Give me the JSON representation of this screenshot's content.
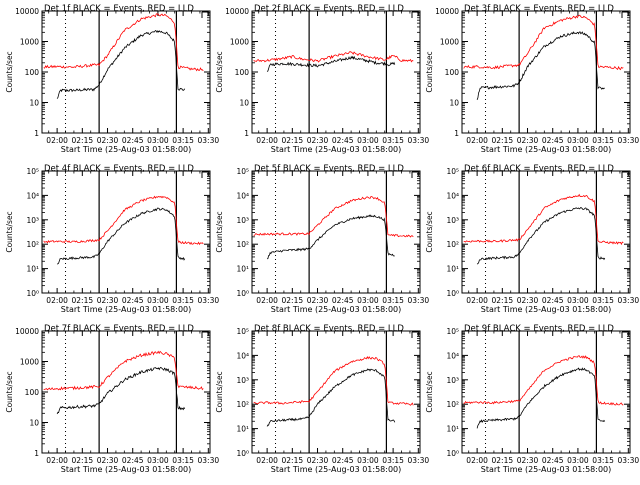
{
  "colors": {
    "events": "#000000",
    "lld": "#ff0000",
    "axes": "#000000",
    "background": "#ffffff"
  },
  "chart_data": [
    {
      "type": "line",
      "title": "Det 1f BLACK = Events, RED = LLD",
      "ylabel": "Counts/sec",
      "xlabel": "Start Time (25-Aug-03 01:58:00)",
      "x_ticks": [
        "02:00",
        "02:15",
        "02:30",
        "02:45",
        "03:00",
        "03:15",
        "03:30"
      ],
      "y_scale": "log",
      "ylim": [
        1,
        10000
      ],
      "y_ticks": [
        "1",
        "10",
        "100",
        "1000",
        "10000"
      ],
      "xlim": [
        "01:51",
        "03:31"
      ],
      "markers": [
        {
          "time": "02:05",
          "style": "dotted"
        },
        {
          "time": "02:25",
          "style": "solid"
        },
        {
          "time": "03:11",
          "style": "solid"
        }
      ],
      "series": [
        {
          "name": "Events",
          "color": "#000000",
          "x": [
            "02:00",
            "02:02",
            "02:10",
            "02:22",
            "02:25",
            "02:30",
            "02:40",
            "02:50",
            "03:00",
            "03:05",
            "03:10",
            "03:12",
            "03:16"
          ],
          "y": [
            13,
            25,
            25,
            27,
            38,
            120,
            600,
            1600,
            2200,
            1900,
            1000,
            28,
            26
          ]
        },
        {
          "name": "LLD",
          "color": "#ff0000",
          "x": [
            "01:52",
            "02:00",
            "02:10",
            "02:20",
            "02:25",
            "02:30",
            "02:40",
            "02:50",
            "03:00",
            "03:05",
            "03:10",
            "03:12",
            "03:20",
            "03:27"
          ],
          "y": [
            145,
            150,
            145,
            165,
            170,
            350,
            2300,
            5500,
            7500,
            7000,
            4200,
            145,
            125,
            120
          ]
        }
      ]
    },
    {
      "type": "line",
      "title": "Det 2f BLACK = Events, RED = LLD",
      "ylabel": "Counts/sec",
      "xlabel": "Start Time (25-Aug-03 01:58:00)",
      "x_ticks": [
        "02:00",
        "02:15",
        "02:30",
        "02:45",
        "03:00",
        "03:15",
        "03:30"
      ],
      "y_scale": "log",
      "ylim": [
        1,
        10000
      ],
      "y_ticks": [
        "1",
        "10",
        "100",
        "1000",
        "10000"
      ],
      "xlim": [
        "01:51",
        "03:31"
      ],
      "markers": [
        {
          "time": "02:05",
          "style": "dotted"
        },
        {
          "time": "02:25",
          "style": "solid"
        },
        {
          "time": "03:11",
          "style": "solid"
        }
      ],
      "series": [
        {
          "name": "Events",
          "color": "#000000",
          "x": [
            "02:00",
            "02:02",
            "02:10",
            "02:20",
            "02:30",
            "02:40",
            "02:50",
            "03:00",
            "03:05",
            "03:10",
            "03:12",
            "03:16"
          ],
          "y": [
            95,
            175,
            190,
            175,
            160,
            220,
            300,
            230,
            200,
            190,
            175,
            190
          ]
        },
        {
          "name": "LLD",
          "color": "#ff0000",
          "x": [
            "01:52",
            "02:00",
            "02:10",
            "02:15",
            "02:20",
            "02:30",
            "02:40",
            "02:50",
            "03:00",
            "03:10",
            "03:15",
            "03:20",
            "03:27"
          ],
          "y": [
            230,
            240,
            280,
            320,
            270,
            230,
            330,
            430,
            320,
            250,
            340,
            240,
            230
          ]
        }
      ]
    },
    {
      "type": "line",
      "title": "Det 3f BLACK = Events, RED = LLD",
      "ylabel": "Counts/sec",
      "xlabel": "Start Time (25-Aug-03 01:58:00)",
      "x_ticks": [
        "02:00",
        "02:15",
        "02:30",
        "02:45",
        "03:00",
        "03:15",
        "03:30"
      ],
      "y_scale": "log",
      "ylim": [
        1,
        10000
      ],
      "y_ticks": [
        "1",
        "10",
        "100",
        "1000",
        "10000"
      ],
      "xlim": [
        "01:51",
        "03:31"
      ],
      "markers": [
        {
          "time": "02:05",
          "style": "dotted"
        },
        {
          "time": "02:25",
          "style": "solid"
        },
        {
          "time": "03:11",
          "style": "solid"
        }
      ],
      "series": [
        {
          "name": "Events",
          "color": "#000000",
          "x": [
            "02:00",
            "02:02",
            "02:10",
            "02:22",
            "02:25",
            "02:30",
            "02:40",
            "02:50",
            "03:00",
            "03:05",
            "03:10",
            "03:12",
            "03:16"
          ],
          "y": [
            13,
            30,
            32,
            35,
            45,
            150,
            700,
            1500,
            2000,
            1700,
            900,
            30,
            28
          ]
        },
        {
          "name": "LLD",
          "color": "#ff0000",
          "x": [
            "01:52",
            "02:00",
            "02:10",
            "02:20",
            "02:25",
            "02:30",
            "02:40",
            "02:50",
            "03:00",
            "03:05",
            "03:10",
            "03:12",
            "03:20",
            "03:27"
          ],
          "y": [
            145,
            150,
            140,
            160,
            170,
            400,
            2800,
            5000,
            6800,
            6000,
            3500,
            150,
            140,
            130
          ]
        }
      ]
    },
    {
      "type": "line",
      "title": "Det 4f BLACK = Events, RED = LLD",
      "ylabel": "Counts/sec",
      "xlabel": "Start Time (25-Aug-03 01:58:00)",
      "x_ticks": [
        "02:00",
        "02:15",
        "02:30",
        "02:45",
        "03:00",
        "03:15",
        "03:30"
      ],
      "y_scale": "log",
      "ylim": [
        1,
        100000
      ],
      "y_ticks": [
        "10⁰",
        "10¹",
        "10²",
        "10³",
        "10⁴",
        "10⁵"
      ],
      "xlim": [
        "01:51",
        "03:31"
      ],
      "markers": [
        {
          "time": "02:05",
          "style": "dotted"
        },
        {
          "time": "02:25",
          "style": "solid"
        },
        {
          "time": "03:11",
          "style": "solid"
        }
      ],
      "series": [
        {
          "name": "Events",
          "color": "#000000",
          "x": [
            "02:00",
            "02:02",
            "02:10",
            "02:22",
            "02:25",
            "02:30",
            "02:40",
            "02:50",
            "03:00",
            "03:05",
            "03:10",
            "03:12",
            "03:16"
          ],
          "y": [
            14,
            25,
            27,
            30,
            40,
            130,
            700,
            1800,
            2800,
            2600,
            1400,
            28,
            25
          ]
        },
        {
          "name": "LLD",
          "color": "#ff0000",
          "x": [
            "01:52",
            "02:00",
            "02:10",
            "02:20",
            "02:25",
            "02:30",
            "02:40",
            "02:50",
            "03:00",
            "03:05",
            "03:10",
            "03:12",
            "03:20",
            "03:27"
          ],
          "y": [
            125,
            130,
            125,
            140,
            150,
            350,
            2500,
            6000,
            9000,
            8500,
            5000,
            120,
            110,
            105
          ]
        }
      ]
    },
    {
      "type": "line",
      "title": "Det 5f BLACK = Events, RED = LLD",
      "ylabel": "Counts/sec",
      "xlabel": "Start Time (25-Aug-03 01:58:00)",
      "x_ticks": [
        "02:00",
        "02:15",
        "02:30",
        "02:45",
        "03:00",
        "03:15",
        "03:30"
      ],
      "y_scale": "log",
      "ylim": [
        1,
        100000
      ],
      "y_ticks": [
        "10⁰",
        "10¹",
        "10²",
        "10³",
        "10⁴",
        "10⁵"
      ],
      "xlim": [
        "01:51",
        "03:31"
      ],
      "markers": [
        {
          "time": "02:05",
          "style": "dotted"
        },
        {
          "time": "02:25",
          "style": "solid"
        },
        {
          "time": "03:11",
          "style": "solid"
        }
      ],
      "series": [
        {
          "name": "Events",
          "color": "#000000",
          "x": [
            "02:00",
            "02:02",
            "02:10",
            "02:20",
            "02:25",
            "02:30",
            "02:40",
            "02:50",
            "03:00",
            "03:05",
            "03:10",
            "03:12",
            "03:16"
          ],
          "y": [
            25,
            45,
            55,
            60,
            65,
            150,
            600,
            1100,
            1400,
            1400,
            1000,
            40,
            35
          ]
        },
        {
          "name": "LLD",
          "color": "#ff0000",
          "x": [
            "01:52",
            "02:00",
            "02:10",
            "02:20",
            "02:25",
            "02:30",
            "02:40",
            "02:50",
            "03:00",
            "03:05",
            "03:10",
            "03:12",
            "03:20",
            "03:27"
          ],
          "y": [
            250,
            260,
            265,
            260,
            270,
            600,
            2800,
            6000,
            8500,
            8000,
            5000,
            230,
            220,
            210
          ]
        }
      ]
    },
    {
      "type": "line",
      "title": "Det 6f BLACK = Events, RED = LLD",
      "ylabel": "Counts/sec",
      "xlabel": "Start Time (25-Aug-03 01:58:00)",
      "x_ticks": [
        "02:00",
        "02:15",
        "02:30",
        "02:45",
        "03:00",
        "03:15",
        "03:30"
      ],
      "y_scale": "log",
      "ylim": [
        1,
        100000
      ],
      "y_ticks": [
        "10⁰",
        "10¹",
        "10²",
        "10³",
        "10⁴",
        "10⁵"
      ],
      "xlim": [
        "01:51",
        "03:31"
      ],
      "markers": [
        {
          "time": "02:05",
          "style": "dotted"
        },
        {
          "time": "02:25",
          "style": "solid"
        },
        {
          "time": "03:11",
          "style": "solid"
        }
      ],
      "series": [
        {
          "name": "Events",
          "color": "#000000",
          "x": [
            "02:00",
            "02:02",
            "02:10",
            "02:22",
            "02:25",
            "02:30",
            "02:40",
            "02:50",
            "03:00",
            "03:05",
            "03:10",
            "03:12",
            "03:16"
          ],
          "y": [
            14,
            25,
            27,
            30,
            40,
            140,
            800,
            2000,
            3000,
            2800,
            1500,
            28,
            26
          ]
        },
        {
          "name": "LLD",
          "color": "#ff0000",
          "x": [
            "01:52",
            "02:00",
            "02:10",
            "02:20",
            "02:25",
            "02:30",
            "02:40",
            "02:50",
            "03:00",
            "03:05",
            "03:10",
            "03:12",
            "03:20",
            "03:27"
          ],
          "y": [
            130,
            135,
            130,
            145,
            150,
            400,
            3000,
            7000,
            10000,
            9500,
            5500,
            125,
            115,
            110
          ]
        }
      ]
    },
    {
      "type": "line",
      "title": "Det 7f BLACK = Events, RED = LLD",
      "ylabel": "Counts/sec",
      "xlabel": "Start Time (25-Aug-03 01:58:00)",
      "x_ticks": [
        "02:00",
        "02:15",
        "02:30",
        "02:45",
        "03:00",
        "03:15",
        "03:30"
      ],
      "y_scale": "log",
      "ylim": [
        1,
        10000
      ],
      "y_ticks": [
        "1",
        "10",
        "100",
        "1000",
        "10000"
      ],
      "xlim": [
        "01:51",
        "03:31"
      ],
      "markers": [
        {
          "time": "02:05",
          "style": "dotted"
        },
        {
          "time": "02:25",
          "style": "solid"
        },
        {
          "time": "03:11",
          "style": "solid"
        }
      ],
      "series": [
        {
          "name": "Events",
          "color": "#000000",
          "x": [
            "02:00",
            "02:02",
            "02:10",
            "02:22",
            "02:25",
            "02:30",
            "02:40",
            "02:50",
            "03:00",
            "03:05",
            "03:10",
            "03:12",
            "03:16"
          ],
          "y": [
            18,
            30,
            32,
            35,
            40,
            90,
            250,
            450,
            600,
            550,
            400,
            30,
            28
          ]
        },
        {
          "name": "LLD",
          "color": "#ff0000",
          "x": [
            "01:52",
            "02:00",
            "02:10",
            "02:20",
            "02:25",
            "02:30",
            "02:40",
            "02:50",
            "03:00",
            "03:05",
            "03:10",
            "03:12",
            "03:20",
            "03:27"
          ],
          "y": [
            120,
            130,
            135,
            145,
            150,
            300,
            1000,
            1600,
            2000,
            1800,
            1300,
            150,
            140,
            130
          ]
        }
      ]
    },
    {
      "type": "line",
      "title": "Det 8f BLACK = Events, RED = LLD",
      "ylabel": "Counts/sec",
      "xlabel": "Start Time (25-Aug-03 01:58:00)",
      "x_ticks": [
        "02:00",
        "02:15",
        "02:30",
        "02:45",
        "03:00",
        "03:15",
        "03:30"
      ],
      "y_scale": "log",
      "ylim": [
        1,
        100000
      ],
      "y_ticks": [
        "10⁰",
        "10¹",
        "10²",
        "10³",
        "10⁴",
        "10⁵"
      ],
      "xlim": [
        "01:51",
        "03:31"
      ],
      "markers": [
        {
          "time": "02:05",
          "style": "dotted"
        },
        {
          "time": "02:25",
          "style": "solid"
        },
        {
          "time": "03:11",
          "style": "solid"
        }
      ],
      "series": [
        {
          "name": "Events",
          "color": "#000000",
          "x": [
            "02:00",
            "02:02",
            "02:10",
            "02:22",
            "02:25",
            "02:30",
            "02:40",
            "02:50",
            "03:00",
            "03:05",
            "03:10",
            "03:12",
            "03:16"
          ],
          "y": [
            12,
            20,
            22,
            25,
            30,
            100,
            500,
            1500,
            2600,
            2400,
            1300,
            22,
            20
          ]
        },
        {
          "name": "LLD",
          "color": "#ff0000",
          "x": [
            "01:52",
            "02:00",
            "02:10",
            "02:20",
            "02:25",
            "02:30",
            "02:40",
            "02:50",
            "03:00",
            "03:05",
            "03:10",
            "03:12",
            "03:20",
            "03:27"
          ],
          "y": [
            110,
            115,
            110,
            125,
            130,
            320,
            2200,
            5500,
            8000,
            7500,
            4500,
            115,
            105,
            100
          ]
        }
      ]
    },
    {
      "type": "line",
      "title": "Det 9f BLACK = Events, RED = LLD",
      "ylabel": "Counts/sec",
      "xlabel": "Start Time (25-Aug-03 01:58:00)",
      "x_ticks": [
        "02:00",
        "02:15",
        "02:30",
        "02:45",
        "03:00",
        "03:15",
        "03:30"
      ],
      "y_scale": "log",
      "ylim": [
        1,
        100000
      ],
      "y_ticks": [
        "10⁰",
        "10¹",
        "10²",
        "10³",
        "10⁴",
        "10⁵"
      ],
      "xlim": [
        "01:51",
        "03:31"
      ],
      "markers": [
        {
          "time": "02:05",
          "style": "dotted"
        },
        {
          "time": "02:25",
          "style": "solid"
        },
        {
          "time": "03:11",
          "style": "solid"
        }
      ],
      "series": [
        {
          "name": "Events",
          "color": "#000000",
          "x": [
            "02:00",
            "02:02",
            "02:10",
            "02:22",
            "02:25",
            "02:30",
            "02:40",
            "02:50",
            "03:00",
            "03:05",
            "03:10",
            "03:12",
            "03:16"
          ],
          "y": [
            11,
            20,
            22,
            25,
            30,
            100,
            550,
            1600,
            2800,
            2600,
            1400,
            22,
            20
          ]
        },
        {
          "name": "LLD",
          "color": "#ff0000",
          "x": [
            "01:52",
            "02:00",
            "02:10",
            "02:20",
            "02:25",
            "02:30",
            "02:40",
            "02:50",
            "03:00",
            "03:05",
            "03:10",
            "03:12",
            "03:20",
            "03:27"
          ],
          "y": [
            115,
            120,
            115,
            130,
            135,
            350,
            2500,
            6000,
            9000,
            8500,
            5000,
            115,
            105,
            100
          ]
        }
      ]
    }
  ]
}
